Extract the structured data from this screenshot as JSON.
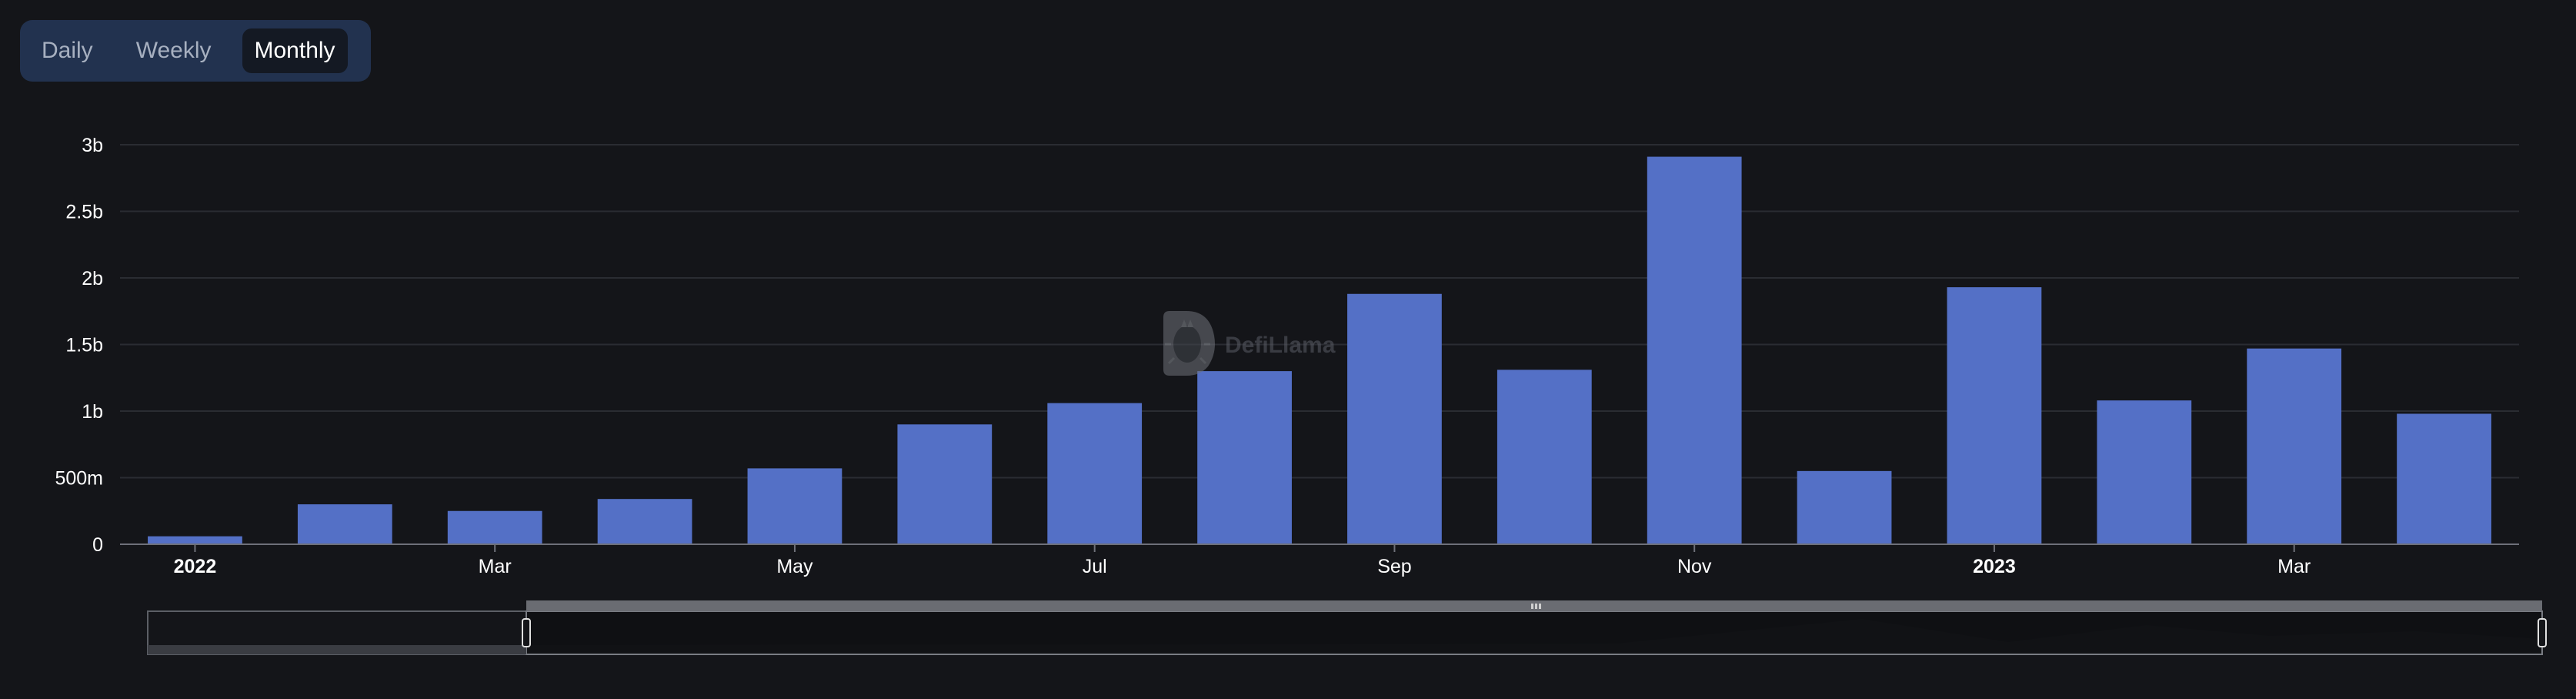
{
  "toggle": {
    "options": [
      "Daily",
      "Weekly",
      "Monthly"
    ],
    "selected": "Monthly"
  },
  "watermark": {
    "text": "DefiLlama"
  },
  "chart_data": {
    "type": "bar",
    "categories": [
      "2022-01",
      "2022-02",
      "2022-03",
      "2022-04",
      "2022-05",
      "2022-06",
      "2022-07",
      "2022-08",
      "2022-09",
      "2022-10",
      "2022-11",
      "2022-12",
      "2023-01",
      "2023-02",
      "2023-03",
      "2023-04"
    ],
    "values": [
      60000000,
      300000000,
      250000000,
      340000000,
      570000000,
      900000000,
      1060000000,
      1300000000,
      1880000000,
      1310000000,
      2910000000,
      550000000,
      1930000000,
      1080000000,
      1470000000,
      980000000
    ],
    "ylim": [
      0,
      3000000000
    ],
    "y_ticks": [
      "0",
      "500m",
      "1b",
      "1.5b",
      "2b",
      "2.5b",
      "3b"
    ],
    "x_ticks": [
      {
        "label": "2022",
        "index": 0,
        "bold": true
      },
      {
        "label": "Mar",
        "index": 2,
        "bold": false
      },
      {
        "label": "May",
        "index": 4,
        "bold": false
      },
      {
        "label": "Jul",
        "index": 6,
        "bold": false
      },
      {
        "label": "Sep",
        "index": 8,
        "bold": false
      },
      {
        "label": "Nov",
        "index": 10,
        "bold": false
      },
      {
        "label": "2023",
        "index": 12,
        "bold": true
      },
      {
        "label": "Mar",
        "index": 14,
        "bold": false
      }
    ],
    "grid": true,
    "bar_color": "#5470c6",
    "datazoom": {
      "start": 0.16,
      "end": 1.0
    }
  }
}
